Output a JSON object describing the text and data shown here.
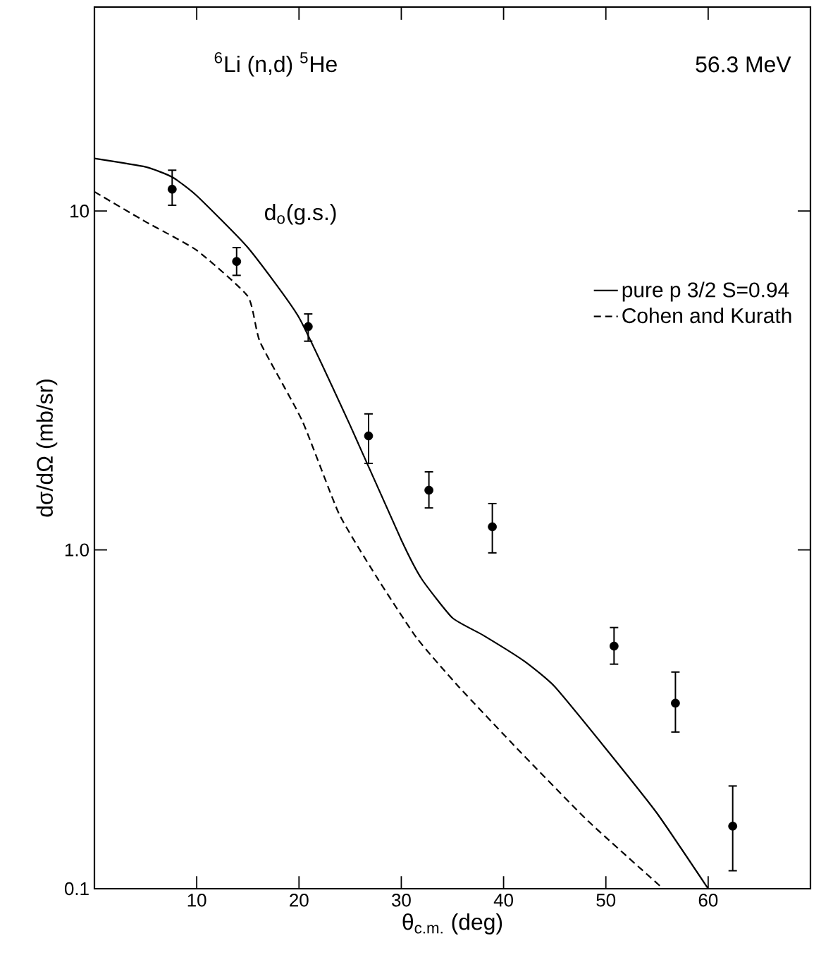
{
  "chart_data": {
    "type": "line",
    "xlabel": "θ$_{c.m.}$ (deg)",
    "ylabel": "dσ/dΩ (mb/sr)",
    "annotations": [
      "$^{6}$Li (n,d) $^{5}$He",
      "56.3 MeV",
      "d$_{o}$(g.s.)"
    ],
    "log": "y",
    "xlim": [
      0,
      70
    ],
    "ylim": [
      0.1,
      40
    ],
    "xticks": [
      10,
      20,
      30,
      40,
      50,
      60
    ],
    "yticks": [
      {
        "value": 0.1,
        "label": "0.1"
      },
      {
        "value": 1,
        "label": "1.0"
      },
      {
        "value": 10,
        "label": "10"
      }
    ],
    "legend": "top right",
    "grid": false,
    "series": [
      {
        "name": "pure  p 3/2  S=0.94",
        "color": "#000000",
        "line_style": "solid",
        "marker": "none",
        "x": [
          0,
          5,
          7.6,
          10,
          15,
          20,
          25,
          30,
          32,
          35,
          38,
          42,
          45,
          50,
          55,
          60
        ],
        "values": [
          14.3,
          13.5,
          12.6,
          11.1,
          7.8,
          4.85,
          2.33,
          1.07,
          0.82,
          0.63,
          0.56,
          0.47,
          0.395,
          0.259,
          0.167,
          0.1
        ]
      },
      {
        "name": "Cohen and Kurath",
        "color": "#000000",
        "line_style": "dashed",
        "marker": "none",
        "x": [
          0,
          5,
          10,
          15,
          16.2,
          20.3,
          23.9,
          27.5,
          31.5,
          35.6,
          41.6,
          48.3,
          55.6
        ],
        "values": [
          11.4,
          9.3,
          7.66,
          5.6,
          4.1,
          2.41,
          1.28,
          0.84,
          0.55,
          0.395,
          0.254,
          0.158,
          0.1
        ]
      },
      {
        "type": "scatter",
        "color": "#000000",
        "marker": "circle",
        "x": [
          7.6,
          13.9,
          20.9,
          26.8,
          32.7,
          38.9,
          50.8,
          56.8,
          62.4
        ],
        "values": [
          11.6,
          7.1,
          4.56,
          2.17,
          1.5,
          1.17,
          0.52,
          0.353,
          0.153
        ],
        "errors": [
          [
            10.4,
            13.2
          ],
          [
            6.46,
            7.8
          ],
          [
            4.13,
            4.97
          ],
          [
            1.8,
            2.52
          ],
          [
            1.33,
            1.7
          ],
          [
            0.98,
            1.37
          ],
          [
            0.46,
            0.59
          ],
          [
            0.29,
            0.436
          ],
          [
            0.113,
            0.201
          ]
        ]
      }
    ]
  }
}
